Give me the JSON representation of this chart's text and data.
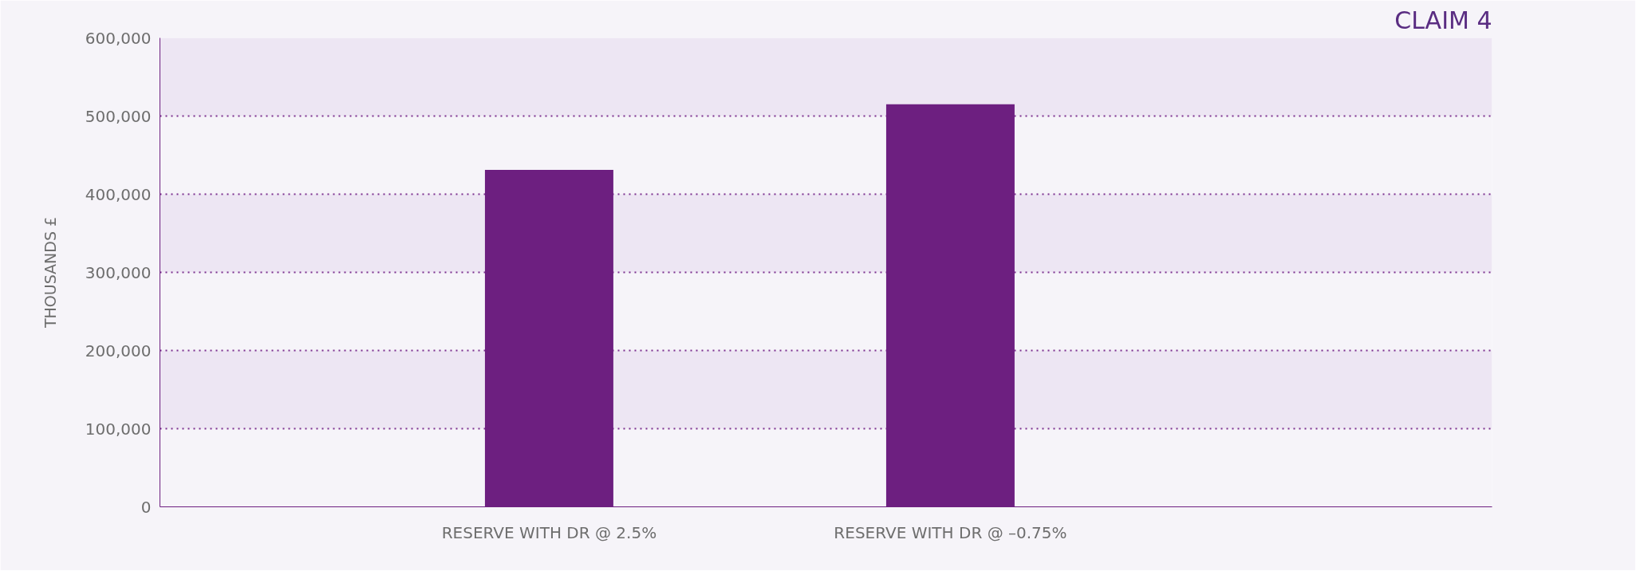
{
  "chart_data": {
    "type": "bar",
    "title": "CLAIM 4",
    "ylabel": "THOUSANDS £",
    "categories": [
      "RESERVE WITH DR @ 2.5%",
      "RESERVE WITH DR @ –0.75%"
    ],
    "values": [
      431000,
      515000
    ],
    "color": "#6d1f80",
    "ylim": [
      0,
      600000
    ],
    "yticks": [
      {
        "value": 0,
        "label": "0"
      },
      {
        "value": 100000,
        "label": "100,000"
      },
      {
        "value": 200000,
        "label": "200,000"
      },
      {
        "value": 300000,
        "label": "300,000"
      },
      {
        "value": 400000,
        "label": "400,000"
      },
      {
        "value": 500000,
        "label": "500,000"
      },
      {
        "value": 600000,
        "label": "600,000"
      }
    ],
    "grid": "y"
  }
}
